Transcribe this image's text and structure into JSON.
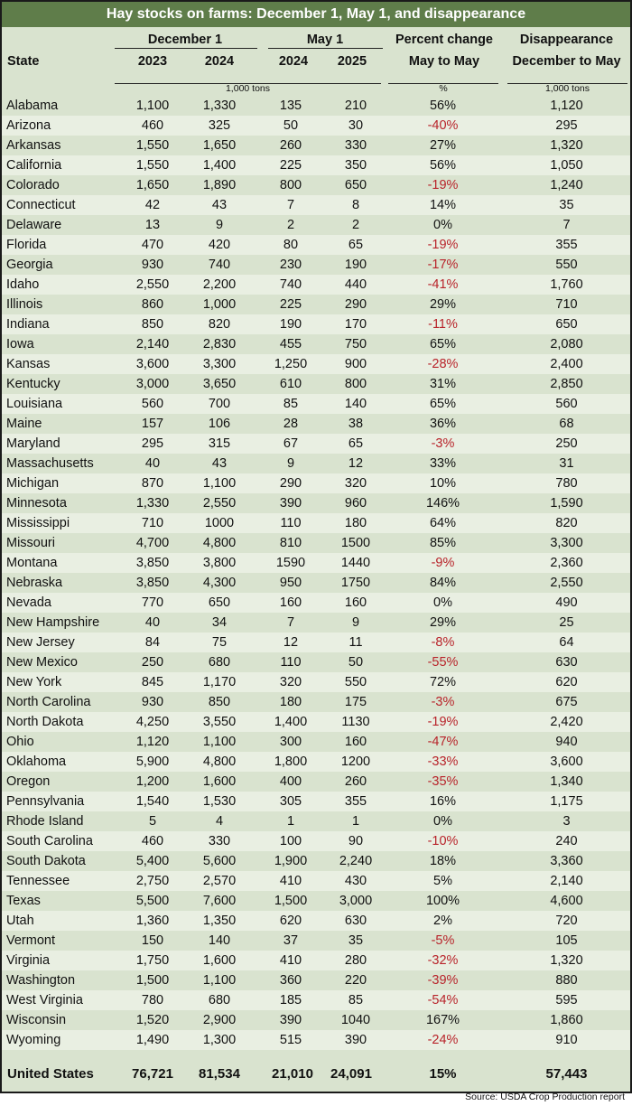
{
  "title": "Hay stocks on farms: December 1, May 1, and disappearance",
  "header": {
    "state": "State",
    "dec1": "December 1",
    "may1": "May 1",
    "y2023": "2023",
    "y2024a": "2024",
    "y2024b": "2024",
    "y2025": "2025",
    "pct_line1": "Percent change",
    "pct_line2": "May to May",
    "dis_line1": "Disappearance",
    "dis_line2": "December to May",
    "unit_tons_left": "1,000 tons",
    "unit_pct": "%",
    "unit_tons_right": "1,000 tons"
  },
  "rows": [
    {
      "state": "Alabama",
      "d2023": "1,100",
      "d2024": "1,330",
      "m2024": "135",
      "m2025": "210",
      "pct": "56%",
      "neg": false,
      "dis": "1,120"
    },
    {
      "state": "Arizona",
      "d2023": "460",
      "d2024": "325",
      "m2024": "50",
      "m2025": "30",
      "pct": "-40%",
      "neg": true,
      "dis": "295"
    },
    {
      "state": "Arkansas",
      "d2023": "1,550",
      "d2024": "1,650",
      "m2024": "260",
      "m2025": "330",
      "pct": "27%",
      "neg": false,
      "dis": "1,320"
    },
    {
      "state": "California",
      "d2023": "1,550",
      "d2024": "1,400",
      "m2024": "225",
      "m2025": "350",
      "pct": "56%",
      "neg": false,
      "dis": "1,050"
    },
    {
      "state": "Colorado",
      "d2023": "1,650",
      "d2024": "1,890",
      "m2024": "800",
      "m2025": "650",
      "pct": "-19%",
      "neg": true,
      "dis": "1,240"
    },
    {
      "state": "Connecticut",
      "d2023": "42",
      "d2024": "43",
      "m2024": "7",
      "m2025": "8",
      "pct": "14%",
      "neg": false,
      "dis": "35"
    },
    {
      "state": "Delaware",
      "d2023": "13",
      "d2024": "9",
      "m2024": "2",
      "m2025": "2",
      "pct": "0%",
      "neg": false,
      "dis": "7"
    },
    {
      "state": "Florida",
      "d2023": "470",
      "d2024": "420",
      "m2024": "80",
      "m2025": "65",
      "pct": "-19%",
      "neg": true,
      "dis": "355"
    },
    {
      "state": "Georgia",
      "d2023": "930",
      "d2024": "740",
      "m2024": "230",
      "m2025": "190",
      "pct": "-17%",
      "neg": true,
      "dis": "550"
    },
    {
      "state": "Idaho",
      "d2023": "2,550",
      "d2024": "2,200",
      "m2024": "740",
      "m2025": "440",
      "pct": "-41%",
      "neg": true,
      "dis": "1,760"
    },
    {
      "state": "Illinois",
      "d2023": "860",
      "d2024": "1,000",
      "m2024": "225",
      "m2025": "290",
      "pct": "29%",
      "neg": false,
      "dis": "710"
    },
    {
      "state": "Indiana",
      "d2023": "850",
      "d2024": "820",
      "m2024": "190",
      "m2025": "170",
      "pct": "-11%",
      "neg": true,
      "dis": "650"
    },
    {
      "state": "Iowa",
      "d2023": "2,140",
      "d2024": "2,830",
      "m2024": "455",
      "m2025": "750",
      "pct": "65%",
      "neg": false,
      "dis": "2,080"
    },
    {
      "state": "Kansas",
      "d2023": "3,600",
      "d2024": "3,300",
      "m2024": "1,250",
      "m2025": "900",
      "pct": "-28%",
      "neg": true,
      "dis": "2,400"
    },
    {
      "state": "Kentucky",
      "d2023": "3,000",
      "d2024": "3,650",
      "m2024": "610",
      "m2025": "800",
      "pct": "31%",
      "neg": false,
      "dis": "2,850"
    },
    {
      "state": "Louisiana",
      "d2023": "560",
      "d2024": "700",
      "m2024": "85",
      "m2025": "140",
      "pct": "65%",
      "neg": false,
      "dis": "560"
    },
    {
      "state": "Maine",
      "d2023": "157",
      "d2024": "106",
      "m2024": "28",
      "m2025": "38",
      "pct": "36%",
      "neg": false,
      "dis": "68"
    },
    {
      "state": "Maryland",
      "d2023": "295",
      "d2024": "315",
      "m2024": "67",
      "m2025": "65",
      "pct": "-3%",
      "neg": true,
      "dis": "250"
    },
    {
      "state": "Massachusetts",
      "d2023": "40",
      "d2024": "43",
      "m2024": "9",
      "m2025": "12",
      "pct": "33%",
      "neg": false,
      "dis": "31"
    },
    {
      "state": "Michigan",
      "d2023": "870",
      "d2024": "1,100",
      "m2024": "290",
      "m2025": "320",
      "pct": "10%",
      "neg": false,
      "dis": "780"
    },
    {
      "state": "Minnesota",
      "d2023": "1,330",
      "d2024": "2,550",
      "m2024": "390",
      "m2025": "960",
      "pct": "146%",
      "neg": false,
      "dis": "1,590"
    },
    {
      "state": "Mississippi",
      "d2023": "710",
      "d2024": "1000",
      "m2024": "110",
      "m2025": "180",
      "pct": "64%",
      "neg": false,
      "dis": "820"
    },
    {
      "state": "Missouri",
      "d2023": "4,700",
      "d2024": "4,800",
      "m2024": "810",
      "m2025": "1500",
      "pct": "85%",
      "neg": false,
      "dis": "3,300"
    },
    {
      "state": "Montana",
      "d2023": "3,850",
      "d2024": "3,800",
      "m2024": "1590",
      "m2025": "1440",
      "pct": "-9%",
      "neg": true,
      "dis": "2,360"
    },
    {
      "state": "Nebraska",
      "d2023": "3,850",
      "d2024": "4,300",
      "m2024": "950",
      "m2025": "1750",
      "pct": "84%",
      "neg": false,
      "dis": "2,550"
    },
    {
      "state": "Nevada",
      "d2023": "770",
      "d2024": "650",
      "m2024": "160",
      "m2025": "160",
      "pct": "0%",
      "neg": false,
      "dis": "490"
    },
    {
      "state": "New Hampshire",
      "d2023": "40",
      "d2024": "34",
      "m2024": "7",
      "m2025": "9",
      "pct": "29%",
      "neg": false,
      "dis": "25"
    },
    {
      "state": "New Jersey",
      "d2023": "84",
      "d2024": "75",
      "m2024": "12",
      "m2025": "11",
      "pct": "-8%",
      "neg": true,
      "dis": "64"
    },
    {
      "state": "New Mexico",
      "d2023": "250",
      "d2024": "680",
      "m2024": "110",
      "m2025": "50",
      "pct": "-55%",
      "neg": true,
      "dis": "630"
    },
    {
      "state": "New York",
      "d2023": "845",
      "d2024": "1,170",
      "m2024": "320",
      "m2025": "550",
      "pct": "72%",
      "neg": false,
      "dis": "620"
    },
    {
      "state": "North Carolina",
      "d2023": "930",
      "d2024": "850",
      "m2024": "180",
      "m2025": "175",
      "pct": "-3%",
      "neg": true,
      "dis": "675"
    },
    {
      "state": "North Dakota",
      "d2023": "4,250",
      "d2024": "3,550",
      "m2024": "1,400",
      "m2025": "1130",
      "pct": "-19%",
      "neg": true,
      "dis": "2,420"
    },
    {
      "state": "Ohio",
      "d2023": "1,120",
      "d2024": "1,100",
      "m2024": "300",
      "m2025": "160",
      "pct": "-47%",
      "neg": true,
      "dis": "940"
    },
    {
      "state": "Oklahoma",
      "d2023": "5,900",
      "d2024": "4,800",
      "m2024": "1,800",
      "m2025": "1200",
      "pct": "-33%",
      "neg": true,
      "dis": "3,600"
    },
    {
      "state": "Oregon",
      "d2023": "1,200",
      "d2024": "1,600",
      "m2024": "400",
      "m2025": "260",
      "pct": "-35%",
      "neg": true,
      "dis": "1,340"
    },
    {
      "state": "Pennsylvania",
      "d2023": "1,540",
      "d2024": "1,530",
      "m2024": "305",
      "m2025": "355",
      "pct": "16%",
      "neg": false,
      "dis": "1,175"
    },
    {
      "state": "Rhode Island",
      "d2023": "5",
      "d2024": "4",
      "m2024": "1",
      "m2025": "1",
      "pct": "0%",
      "neg": false,
      "dis": "3"
    },
    {
      "state": "South Carolina",
      "d2023": "460",
      "d2024": "330",
      "m2024": "100",
      "m2025": "90",
      "pct": "-10%",
      "neg": true,
      "dis": "240"
    },
    {
      "state": "South Dakota",
      "d2023": "5,400",
      "d2024": "5,600",
      "m2024": "1,900",
      "m2025": "2,240",
      "pct": "18%",
      "neg": false,
      "dis": "3,360"
    },
    {
      "state": "Tennessee",
      "d2023": "2,750",
      "d2024": "2,570",
      "m2024": "410",
      "m2025": "430",
      "pct": "5%",
      "neg": false,
      "dis": "2,140"
    },
    {
      "state": "Texas",
      "d2023": "5,500",
      "d2024": "7,600",
      "m2024": "1,500",
      "m2025": "3,000",
      "pct": "100%",
      "neg": false,
      "dis": "4,600"
    },
    {
      "state": "Utah",
      "d2023": "1,360",
      "d2024": "1,350",
      "m2024": "620",
      "m2025": "630",
      "pct": "2%",
      "neg": false,
      "dis": "720"
    },
    {
      "state": "Vermont",
      "d2023": "150",
      "d2024": "140",
      "m2024": "37",
      "m2025": "35",
      "pct": "-5%",
      "neg": true,
      "dis": "105"
    },
    {
      "state": "Virginia",
      "d2023": "1,750",
      "d2024": "1,600",
      "m2024": "410",
      "m2025": "280",
      "pct": "-32%",
      "neg": true,
      "dis": "1,320"
    },
    {
      "state": "Washington",
      "d2023": "1,500",
      "d2024": "1,100",
      "m2024": "360",
      "m2025": "220",
      "pct": "-39%",
      "neg": true,
      "dis": "880"
    },
    {
      "state": "West Virginia",
      "d2023": "780",
      "d2024": "680",
      "m2024": "185",
      "m2025": "85",
      "pct": "-54%",
      "neg": true,
      "dis": "595"
    },
    {
      "state": "Wisconsin",
      "d2023": "1,520",
      "d2024": "2,900",
      "m2024": "390",
      "m2025": "1040",
      "pct": "167%",
      "neg": false,
      "dis": "1,860"
    },
    {
      "state": "Wyoming",
      "d2023": "1,490",
      "d2024": "1,300",
      "m2024": "515",
      "m2025": "390",
      "pct": "-24%",
      "neg": true,
      "dis": "910"
    }
  ],
  "total": {
    "state": "United States",
    "d2023": "76,721",
    "d2024": "81,534",
    "m2024": "21,010",
    "m2025": "24,091",
    "pct": "15%",
    "dis": "57,443"
  },
  "source": "Source: USDA Crop Production report",
  "colors": {
    "title_bg": "#5f7d4a",
    "table_bg": "#d9e3cf",
    "row_alt_bg": "#e9efe2",
    "negative_text": "#b8232a"
  }
}
